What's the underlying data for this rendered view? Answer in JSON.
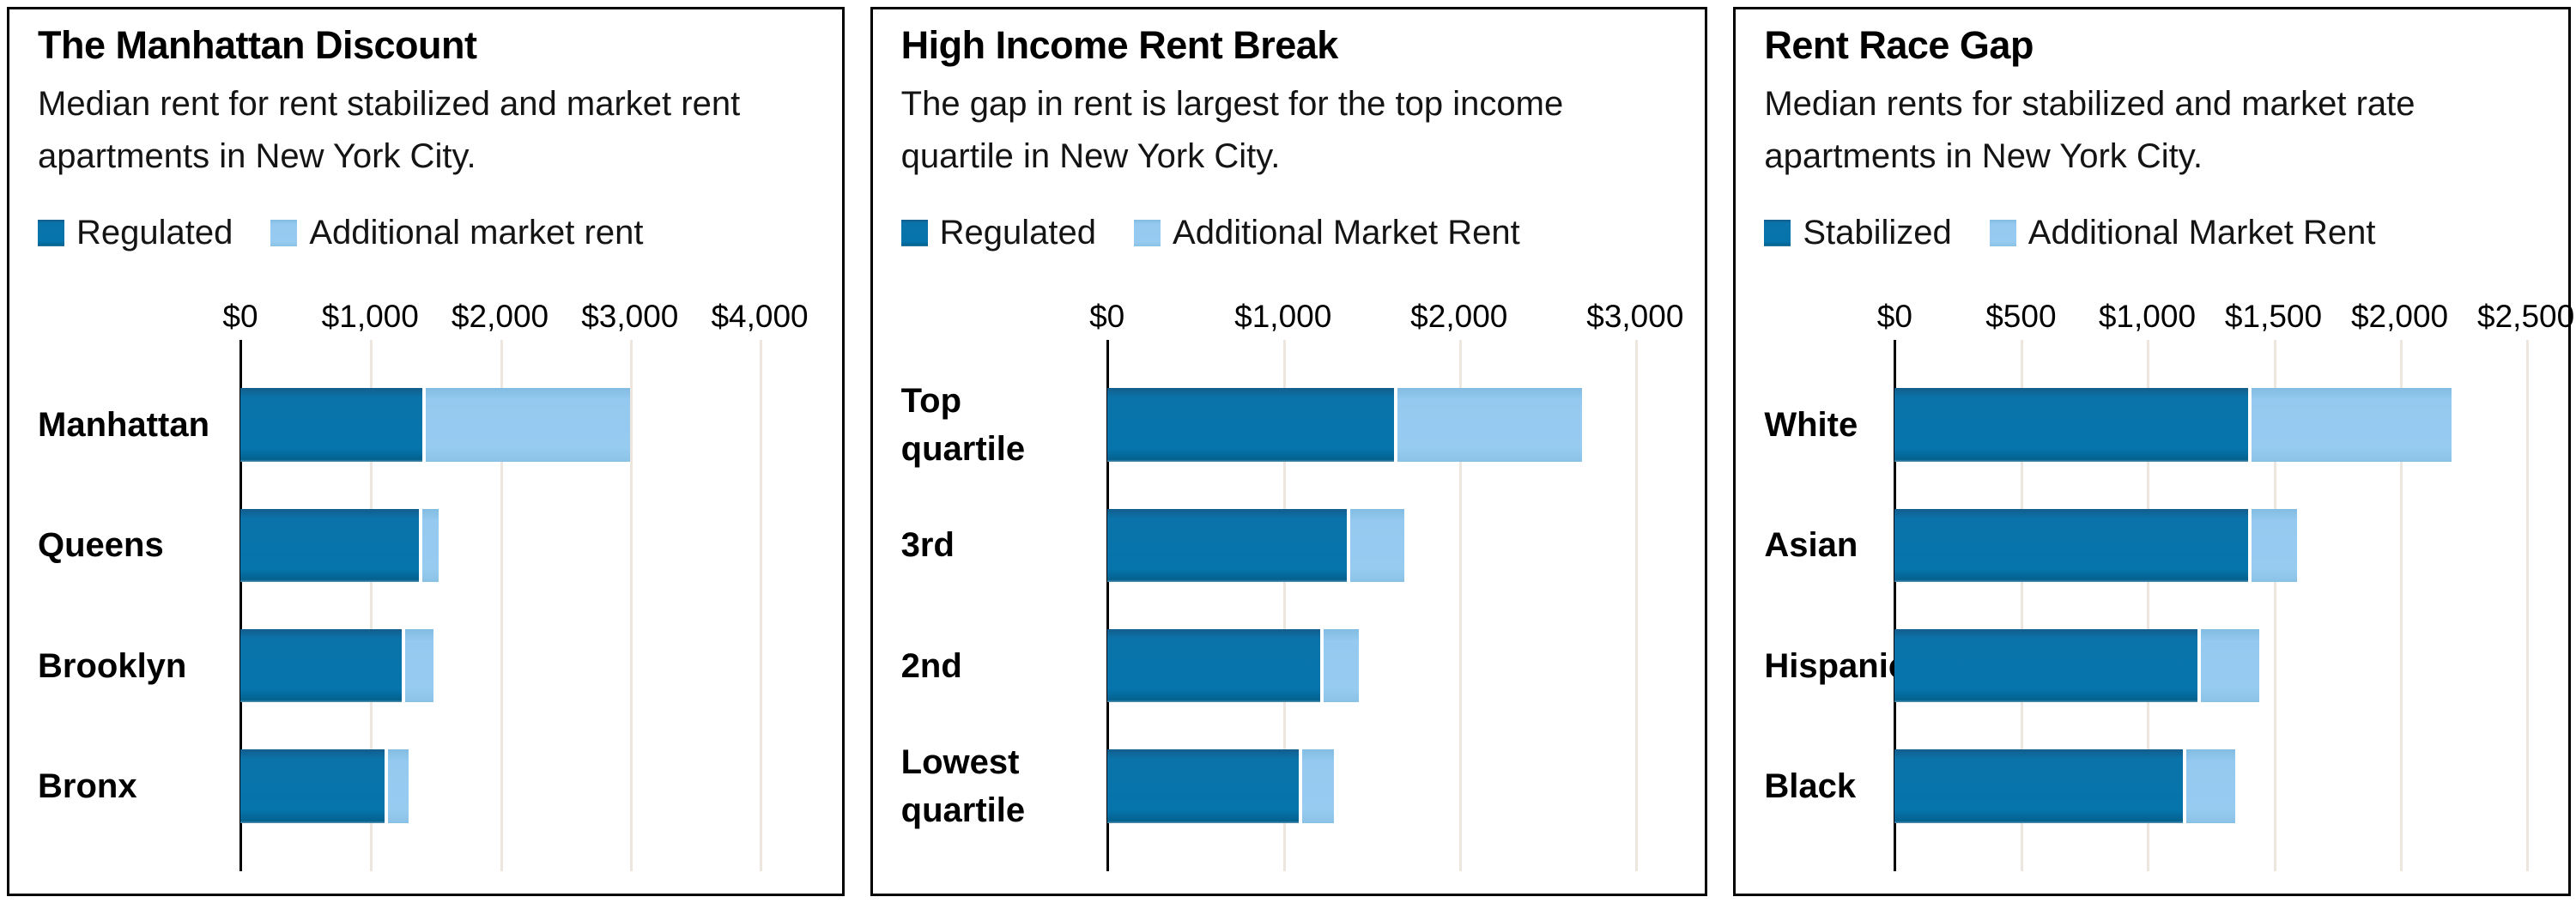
{
  "page": {
    "background": "#ffffff"
  },
  "colors": {
    "regulated_dark_blue": "#0575ac",
    "additional_light_blue": "#95c9ef",
    "gridline": "#ece6de",
    "axis": "#000000",
    "text": "#141414"
  },
  "chart_data": [
    {
      "type": "bar",
      "orientation": "horizontal",
      "stacked": true,
      "title": "The Manhattan Discount",
      "subtitle": "Median rent for rent stabilized and market rent apartments in New York City.",
      "categories": [
        "Manhattan",
        "Queens",
        "Brooklyn",
        "Bronx"
      ],
      "series": [
        {
          "name": "Regulated",
          "color": "#0575ac",
          "values": [
            1400,
            1375,
            1245,
            1110
          ]
        },
        {
          "name": "Additional market rent",
          "color": "#95c9ef",
          "values": [
            1600,
            150,
            240,
            185
          ]
        }
      ],
      "stacked_totals": [
        3000,
        1525,
        1485,
        1295
      ],
      "xlabel": "",
      "ylabel": "",
      "xlim": [
        0,
        4500
      ],
      "xticks": [
        {
          "label": "$0",
          "value": 0
        },
        {
          "label": "$1,000",
          "value": 1000
        },
        {
          "label": "$2,000",
          "value": 2000
        },
        {
          "label": "$3,000",
          "value": 3000
        },
        {
          "label": "$4,000",
          "value": 4000
        }
      ],
      "grid": "vertical",
      "legend_position": "top"
    },
    {
      "type": "bar",
      "orientation": "horizontal",
      "stacked": true,
      "title": "High Income Rent Break",
      "subtitle": "The gap in rent is largest for the top income quartile in New York City.",
      "categories": [
        "Top quartile",
        "3rd",
        "2nd",
        "Lowest quartile"
      ],
      "series": [
        {
          "name": "Regulated",
          "color": "#0575ac",
          "values": [
            1630,
            1360,
            1210,
            1090
          ]
        },
        {
          "name": "Additional Market Rent",
          "color": "#95c9ef",
          "values": [
            1070,
            330,
            220,
            200
          ]
        }
      ],
      "stacked_totals": [
        2700,
        1690,
        1430,
        1290
      ],
      "xlabel": "",
      "ylabel": "",
      "xlim": [
        0,
        3300
      ],
      "xticks": [
        {
          "label": "$0",
          "value": 0
        },
        {
          "label": "$1,000",
          "value": 1000
        },
        {
          "label": "$2,000",
          "value": 2000
        },
        {
          "label": "$3,000",
          "value": 3000
        }
      ],
      "grid": "vertical",
      "legend_position": "top"
    },
    {
      "type": "bar",
      "orientation": "horizontal",
      "stacked": true,
      "title": "Rent Race Gap",
      "subtitle": "Median rents for stabilized and market rate apartments in New York City.",
      "categories": [
        "White",
        "Asian",
        "Hispanic",
        "Black"
      ],
      "series": [
        {
          "name": "Stabilized",
          "color": "#0575ac",
          "values": [
            1400,
            1400,
            1200,
            1140
          ]
        },
        {
          "name": "Additional Market Rent",
          "color": "#95c9ef",
          "values": [
            805,
            195,
            245,
            210
          ]
        }
      ],
      "stacked_totals": [
        2205,
        1595,
        1445,
        1350
      ],
      "xlabel": "",
      "ylabel": "",
      "xlim": [
        0,
        2600
      ],
      "xticks": [
        {
          "label": "$0",
          "value": 0
        },
        {
          "label": "$500",
          "value": 500
        },
        {
          "label": "$1,000",
          "value": 1000
        },
        {
          "label": "$1,500",
          "value": 1500
        },
        {
          "label": "$2,000",
          "value": 2000
        },
        {
          "label": "$2,500",
          "value": 2500
        }
      ],
      "grid": "vertical",
      "legend_position": "top"
    }
  ]
}
